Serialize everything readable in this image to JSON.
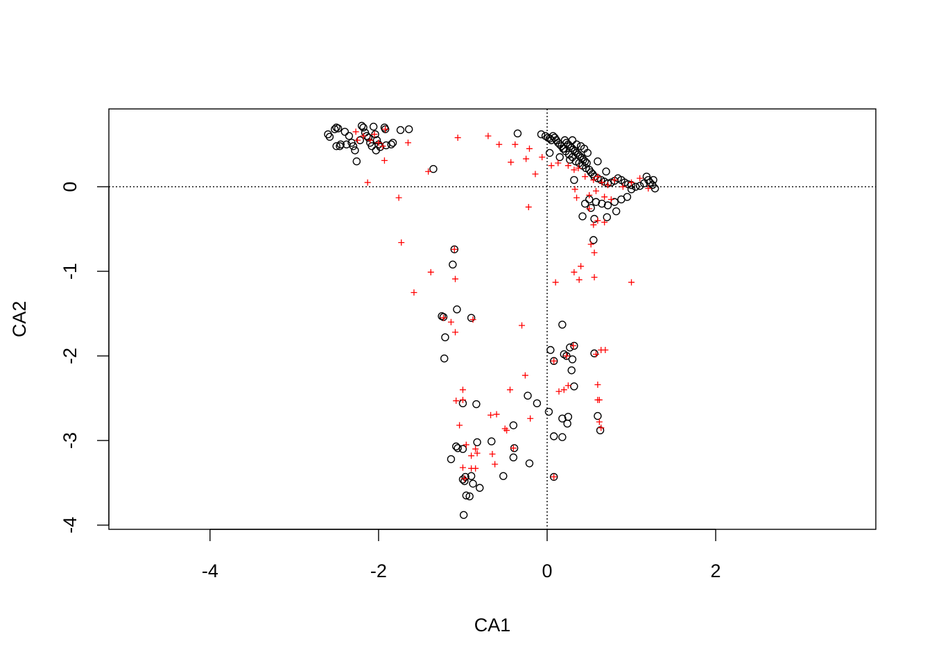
{
  "chart_data": {
    "type": "scatter",
    "title": "",
    "xlabel": "CA1",
    "ylabel": "CA2",
    "xlim": [
      -5.2,
      3.9
    ],
    "ylim": [
      -4.05,
      0.92
    ],
    "x_ticks": [
      -4,
      -2,
      0,
      2
    ],
    "x_tick_labels": [
      "-4",
      "-2",
      "0",
      "2"
    ],
    "y_ticks": [
      0,
      -1,
      -2,
      -3,
      -4
    ],
    "y_tick_labels": [
      "0",
      "-1",
      "-2",
      "-3",
      "-4"
    ],
    "reference_lines": [
      {
        "axis": "x",
        "value": 0,
        "style": "dotted"
      },
      {
        "axis": "y",
        "value": 0,
        "style": "dotted"
      }
    ],
    "grid": false,
    "legend": "none",
    "series": [
      {
        "marker": "open-circle",
        "color": "#000000",
        "points": [
          [
            -2.6,
            0.62
          ],
          [
            -2.58,
            0.59
          ],
          [
            -2.52,
            0.68
          ],
          [
            -2.5,
            0.7
          ],
          [
            -2.48,
            0.69
          ],
          [
            -2.5,
            0.48
          ],
          [
            -2.45,
            0.5
          ],
          [
            -2.46,
            0.48
          ],
          [
            -2.4,
            0.65
          ],
          [
            -2.38,
            0.5
          ],
          [
            -2.35,
            0.6
          ],
          [
            -2.32,
            0.52
          ],
          [
            -2.3,
            0.48
          ],
          [
            -2.28,
            0.43
          ],
          [
            -2.26,
            0.3
          ],
          [
            -2.22,
            0.55
          ],
          [
            -2.2,
            0.72
          ],
          [
            -2.18,
            0.7
          ],
          [
            -2.16,
            0.64
          ],
          [
            -2.14,
            0.6
          ],
          [
            -2.12,
            0.58
          ],
          [
            -2.1,
            0.52
          ],
          [
            -2.08,
            0.48
          ],
          [
            -2.06,
            0.71
          ],
          [
            -2.04,
            0.62
          ],
          [
            -2.02,
            0.55
          ],
          [
            -2.0,
            0.5
          ],
          [
            -1.98,
            0.47
          ],
          [
            -2.03,
            0.43
          ],
          [
            -1.93,
            0.7
          ],
          [
            -1.92,
            0.68
          ],
          [
            -1.91,
            0.49
          ],
          [
            -1.85,
            0.5
          ],
          [
            -1.83,
            0.52
          ],
          [
            -1.74,
            0.67
          ],
          [
            -1.64,
            0.68
          ],
          [
            -1.35,
            0.21
          ],
          [
            -0.35,
            0.63
          ],
          [
            -0.07,
            0.62
          ],
          [
            -0.02,
            0.6
          ],
          [
            0.01,
            0.58
          ],
          [
            0.03,
            0.57
          ],
          [
            0.05,
            0.55
          ],
          [
            0.07,
            0.6
          ],
          [
            0.09,
            0.58
          ],
          [
            0.11,
            0.55
          ],
          [
            0.13,
            0.52
          ],
          [
            0.15,
            0.5
          ],
          [
            0.17,
            0.48
          ],
          [
            0.19,
            0.45
          ],
          [
            0.21,
            0.55
          ],
          [
            0.23,
            0.52
          ],
          [
            0.25,
            0.5
          ],
          [
            0.27,
            0.48
          ],
          [
            0.29,
            0.46
          ],
          [
            0.31,
            0.44
          ],
          [
            0.33,
            0.42
          ],
          [
            0.35,
            0.4
          ],
          [
            0.37,
            0.38
          ],
          [
            0.39,
            0.36
          ],
          [
            0.41,
            0.34
          ],
          [
            0.43,
            0.32
          ],
          [
            0.45,
            0.3
          ],
          [
            0.47,
            0.28
          ],
          [
            0.2,
            0.45
          ],
          [
            0.22,
            0.42
          ],
          [
            0.26,
            0.38
          ],
          [
            0.3,
            0.35
          ],
          [
            0.34,
            0.3
          ],
          [
            0.38,
            0.28
          ],
          [
            0.42,
            0.25
          ],
          [
            0.46,
            0.22
          ],
          [
            0.5,
            0.2
          ],
          [
            0.52,
            0.17
          ],
          [
            0.54,
            0.15
          ],
          [
            0.56,
            0.12
          ],
          [
            0.6,
            0.1
          ],
          [
            0.64,
            0.08
          ],
          [
            0.68,
            0.06
          ],
          [
            0.72,
            0.04
          ],
          [
            0.76,
            0.05
          ],
          [
            0.8,
            0.07
          ],
          [
            0.84,
            0.1
          ],
          [
            0.88,
            0.08
          ],
          [
            0.92,
            0.05
          ],
          [
            0.96,
            0.03
          ],
          [
            1.0,
            0.02
          ],
          [
            1.05,
            0.0
          ],
          [
            1.1,
            0.01
          ],
          [
            1.15,
            0.04
          ],
          [
            1.18,
            0.12
          ],
          [
            1.2,
            0.08
          ],
          [
            1.22,
            0.05
          ],
          [
            1.25,
            0.02
          ],
          [
            1.28,
            -0.02
          ],
          [
            1.26,
            0.08
          ],
          [
            1.0,
            -0.03
          ],
          [
            0.95,
            -0.12
          ],
          [
            0.88,
            -0.15
          ],
          [
            0.8,
            -0.18
          ],
          [
            0.72,
            -0.22
          ],
          [
            0.65,
            -0.2
          ],
          [
            0.58,
            -0.18
          ],
          [
            0.5,
            -0.15
          ],
          [
            0.45,
            -0.2
          ],
          [
            0.52,
            -0.25
          ],
          [
            0.42,
            -0.35
          ],
          [
            0.56,
            -0.38
          ],
          [
            0.71,
            -0.36
          ],
          [
            0.82,
            -0.29
          ],
          [
            0.55,
            -0.63
          ],
          [
            0.03,
            0.4
          ],
          [
            0.15,
            0.35
          ],
          [
            0.27,
            0.32
          ],
          [
            0.32,
            0.08
          ],
          [
            0.6,
            0.3
          ],
          [
            0.7,
            0.18
          ],
          [
            0.35,
            0.5
          ],
          [
            0.4,
            0.48
          ],
          [
            0.44,
            0.45
          ],
          [
            0.48,
            0.4
          ],
          [
            0.3,
            0.55
          ],
          [
            -1.1,
            -0.74
          ],
          [
            -1.12,
            -0.92
          ],
          [
            -1.07,
            -1.45
          ],
          [
            -1.25,
            -1.53
          ],
          [
            -1.23,
            -1.54
          ],
          [
            -1.21,
            -1.78
          ],
          [
            -1.22,
            -2.03
          ],
          [
            -0.9,
            -1.55
          ],
          [
            0.18,
            -1.63
          ],
          [
            0.04,
            -1.93
          ],
          [
            0.27,
            -1.9
          ],
          [
            0.32,
            -1.88
          ],
          [
            0.2,
            -1.98
          ],
          [
            0.23,
            -2.0
          ],
          [
            0.08,
            -2.06
          ],
          [
            0.3,
            -2.04
          ],
          [
            0.29,
            -2.17
          ],
          [
            0.32,
            -2.36
          ],
          [
            0.56,
            -1.97
          ],
          [
            -0.23,
            -2.47
          ],
          [
            -0.12,
            -2.56
          ],
          [
            0.02,
            -2.66
          ],
          [
            0.18,
            -2.74
          ],
          [
            0.25,
            -2.72
          ],
          [
            0.24,
            -2.8
          ],
          [
            0.08,
            -2.95
          ],
          [
            0.18,
            -2.96
          ],
          [
            0.6,
            -2.71
          ],
          [
            0.63,
            -2.88
          ],
          [
            0.08,
            -3.43
          ],
          [
            -1.0,
            -2.56
          ],
          [
            -0.84,
            -2.57
          ],
          [
            -0.4,
            -2.82
          ],
          [
            -0.66,
            -3.01
          ],
          [
            -0.83,
            -3.02
          ],
          [
            -1.08,
            -3.07
          ],
          [
            -1.06,
            -3.09
          ],
          [
            -1.0,
            -3.1
          ],
          [
            -1.14,
            -3.22
          ],
          [
            -0.39,
            -3.09
          ],
          [
            -0.4,
            -3.2
          ],
          [
            -0.21,
            -3.27
          ],
          [
            -0.52,
            -3.42
          ],
          [
            -0.9,
            -3.42
          ],
          [
            -0.97,
            -3.43
          ],
          [
            -1.0,
            -3.46
          ],
          [
            -0.98,
            -3.48
          ],
          [
            -0.88,
            -3.51
          ],
          [
            -0.8,
            -3.56
          ],
          [
            -0.96,
            -3.65
          ],
          [
            -0.92,
            -3.66
          ],
          [
            -0.99,
            -3.88
          ]
        ]
      },
      {
        "marker": "plus",
        "color": "#ff0000",
        "points": [
          [
            -2.27,
            0.65
          ],
          [
            -2.25,
            0.55
          ],
          [
            -2.18,
            0.6
          ],
          [
            -2.1,
            0.55
          ],
          [
            -2.05,
            0.62
          ],
          [
            -2.0,
            0.52
          ],
          [
            -1.95,
            0.48
          ],
          [
            -1.92,
            0.68
          ],
          [
            -1.65,
            0.52
          ],
          [
            -1.93,
            0.31
          ],
          [
            -2.13,
            0.05
          ],
          [
            -1.41,
            0.18
          ],
          [
            -1.06,
            0.58
          ],
          [
            -0.7,
            0.6
          ],
          [
            -0.57,
            0.5
          ],
          [
            -0.38,
            0.5
          ],
          [
            -0.21,
            0.45
          ],
          [
            -0.43,
            0.29
          ],
          [
            -0.25,
            0.33
          ],
          [
            -0.14,
            0.15
          ],
          [
            -0.06,
            0.35
          ],
          [
            0.05,
            0.25
          ],
          [
            0.13,
            0.28
          ],
          [
            0.25,
            0.25
          ],
          [
            0.32,
            0.2
          ],
          [
            0.37,
            0.22
          ],
          [
            0.45,
            0.12
          ],
          [
            0.55,
            0.08
          ],
          [
            0.6,
            0.12
          ],
          [
            0.65,
            0.05
          ],
          [
            0.72,
            0.02
          ],
          [
            0.8,
            0.08
          ],
          [
            0.9,
            0.0
          ],
          [
            1.0,
            0.05
          ],
          [
            1.1,
            0.1
          ],
          [
            1.2,
            -0.02
          ],
          [
            0.33,
            -0.03
          ],
          [
            0.35,
            -0.13
          ],
          [
            0.5,
            -0.1
          ],
          [
            0.58,
            -0.05
          ],
          [
            0.68,
            -0.12
          ],
          [
            0.76,
            -0.15
          ],
          [
            0.5,
            -0.26
          ],
          [
            0.55,
            -0.45
          ],
          [
            0.6,
            -0.4
          ],
          [
            0.52,
            -0.68
          ],
          [
            0.56,
            -0.78
          ],
          [
            -1.76,
            -0.13
          ],
          [
            -1.73,
            -0.66
          ],
          [
            -0.22,
            -0.24
          ],
          [
            -1.38,
            -1.01
          ],
          [
            -1.09,
            -1.09
          ],
          [
            -1.58,
            -1.25
          ],
          [
            0.1,
            -1.13
          ],
          [
            0.32,
            -1.01
          ],
          [
            0.38,
            -1.1
          ],
          [
            0.4,
            -0.94
          ],
          [
            0.56,
            -1.07
          ],
          [
            0.68,
            -0.42
          ],
          [
            1.0,
            -1.13
          ],
          [
            -1.1,
            -0.74
          ],
          [
            -1.23,
            -1.55
          ],
          [
            -1.14,
            -1.6
          ],
          [
            -1.09,
            -1.72
          ],
          [
            -0.88,
            -1.57
          ],
          [
            -0.3,
            -1.64
          ],
          [
            -0.26,
            -2.23
          ],
          [
            0.08,
            -2.06
          ],
          [
            0.23,
            -2.0
          ],
          [
            0.31,
            -1.88
          ],
          [
            0.58,
            -1.98
          ],
          [
            0.64,
            -1.93
          ],
          [
            0.69,
            -1.93
          ],
          [
            0.14,
            -2.42
          ],
          [
            0.2,
            -2.4
          ],
          [
            0.25,
            -2.35
          ],
          [
            0.6,
            -2.34
          ],
          [
            0.6,
            -2.52
          ],
          [
            0.62,
            -2.52
          ],
          [
            0.62,
            -2.78
          ],
          [
            0.64,
            -2.85
          ],
          [
            0.08,
            -3.43
          ],
          [
            -0.44,
            -2.4
          ],
          [
            -0.67,
            -2.7
          ],
          [
            -0.6,
            -2.69
          ],
          [
            -0.2,
            -2.74
          ],
          [
            -1.08,
            -2.53
          ],
          [
            -1.0,
            -2.52
          ],
          [
            -1.0,
            -2.4
          ],
          [
            -1.04,
            -2.82
          ],
          [
            -0.5,
            -2.86
          ],
          [
            -0.48,
            -2.88
          ],
          [
            -0.4,
            -3.09
          ],
          [
            -0.96,
            -3.05
          ],
          [
            -0.85,
            -3.1
          ],
          [
            -0.83,
            -3.15
          ],
          [
            -0.9,
            -3.18
          ],
          [
            -0.9,
            -3.33
          ],
          [
            -0.85,
            -3.33
          ],
          [
            -0.65,
            -3.16
          ],
          [
            -0.62,
            -3.28
          ],
          [
            -0.98,
            -3.45
          ],
          [
            -1.0,
            -3.32
          ]
        ]
      }
    ]
  }
}
